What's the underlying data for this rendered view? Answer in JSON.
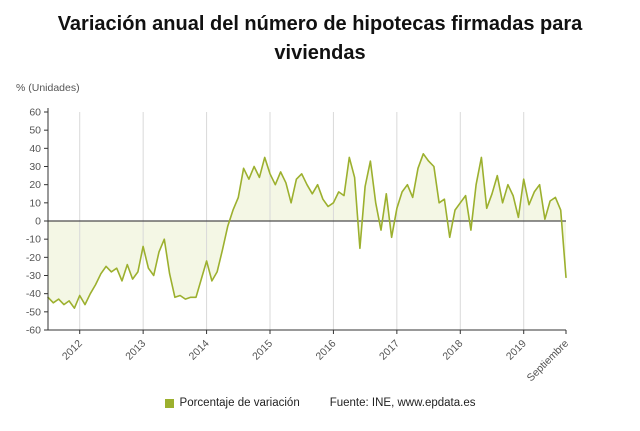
{
  "page": {
    "title": "Variación anual del número de hipotecas firmadas para viviendas"
  },
  "chart": {
    "y_axis_title": "% (Unidades)",
    "legend_label": "Porcentaje de variación",
    "source": "Fuente: INE, www.epdata.es",
    "colors": {
      "line": "#9cb02e",
      "fill": "#f2f6e0",
      "zero_line": "#4d4d4d",
      "grid": "#d9d9d9",
      "axis": "#333333",
      "axis_text": "#555555"
    }
  },
  "chart_data": {
    "type": "line",
    "title": "Variación anual del número de hipotecas firmadas para viviendas",
    "xlabel": "",
    "ylabel": "% (Unidades)",
    "ylim": [
      -60,
      60
    ],
    "y_ticks": [
      60,
      50,
      40,
      30,
      20,
      10,
      0,
      -10,
      -20,
      -30,
      -40,
      -50,
      -60
    ],
    "x_tick_labels": [
      "2012",
      "2013",
      "2014",
      "2015",
      "2016",
      "2017",
      "2018",
      "2019",
      "Septiembre"
    ],
    "grid": "vertical",
    "legend_position": "bottom",
    "x": [
      "2011-07",
      "2011-08",
      "2011-09",
      "2011-10",
      "2011-11",
      "2011-12",
      "2012-01",
      "2012-02",
      "2012-03",
      "2012-04",
      "2012-05",
      "2012-06",
      "2012-07",
      "2012-08",
      "2012-09",
      "2012-10",
      "2012-11",
      "2012-12",
      "2013-01",
      "2013-02",
      "2013-03",
      "2013-04",
      "2013-05",
      "2013-06",
      "2013-07",
      "2013-08",
      "2013-09",
      "2013-10",
      "2013-11",
      "2013-12",
      "2014-01",
      "2014-02",
      "2014-03",
      "2014-04",
      "2014-05",
      "2014-06",
      "2014-07",
      "2014-08",
      "2014-09",
      "2014-10",
      "2014-11",
      "2014-12",
      "2015-01",
      "2015-02",
      "2015-03",
      "2015-04",
      "2015-05",
      "2015-06",
      "2015-07",
      "2015-08",
      "2015-09",
      "2015-10",
      "2015-11",
      "2015-12",
      "2016-01",
      "2016-02",
      "2016-03",
      "2016-04",
      "2016-05",
      "2016-06",
      "2016-07",
      "2016-08",
      "2016-09",
      "2016-10",
      "2016-11",
      "2016-12",
      "2017-01",
      "2017-02",
      "2017-03",
      "2017-04",
      "2017-05",
      "2017-06",
      "2017-07",
      "2017-08",
      "2017-09",
      "2017-10",
      "2017-11",
      "2017-12",
      "2018-01",
      "2018-02",
      "2018-03",
      "2018-04",
      "2018-05",
      "2018-06",
      "2018-07",
      "2018-08",
      "2018-09",
      "2018-10",
      "2018-11",
      "2018-12",
      "2019-01",
      "2019-02",
      "2019-03",
      "2019-04",
      "2019-05",
      "2019-06",
      "2019-07",
      "2019-08",
      "2019-09"
    ],
    "series": [
      {
        "name": "Porcentaje de variación",
        "values": [
          -42,
          -45,
          -43,
          -46,
          -44,
          -48,
          -41,
          -46,
          -40,
          -35,
          -29,
          -25,
          -28,
          -26,
          -33,
          -24,
          -32,
          -28,
          -14,
          -26,
          -30,
          -17,
          -10,
          -29,
          -42,
          -41,
          -43,
          -42,
          -42,
          -32,
          -22,
          -33,
          -28,
          -16,
          -3,
          6,
          13,
          29,
          23,
          30,
          24,
          35,
          26,
          20,
          27,
          21,
          10,
          23,
          26,
          20,
          15,
          20,
          12,
          8,
          10,
          16,
          14,
          35,
          24,
          -15,
          19,
          33,
          10,
          -5,
          15,
          -9,
          7,
          16,
          20,
          13,
          29,
          37,
          33,
          30,
          10,
          12,
          -9,
          6,
          10,
          14,
          -5,
          20,
          35,
          7,
          15,
          25,
          10,
          20,
          14,
          2,
          23,
          9,
          16,
          20,
          1,
          11,
          13,
          6,
          -31
        ]
      }
    ]
  }
}
